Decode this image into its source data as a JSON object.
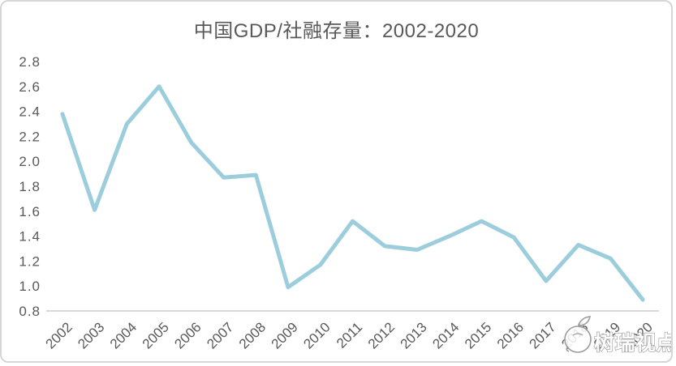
{
  "card": {
    "background": "#ffffff",
    "border_color": "#d6d6d6"
  },
  "chart_data": {
    "type": "line",
    "title": "中国GDP/社融存量：2002-2020",
    "categories": [
      "2002",
      "2003",
      "2004",
      "2005",
      "2006",
      "2007",
      "2008",
      "2009",
      "2010",
      "2011",
      "2012",
      "2013",
      "2014",
      "2015",
      "2016",
      "2017",
      "2018",
      "2019",
      "2020"
    ],
    "values": [
      2.38,
      1.61,
      2.3,
      2.6,
      2.15,
      1.87,
      1.89,
      0.99,
      1.17,
      1.52,
      1.32,
      1.29,
      1.4,
      1.52,
      1.39,
      1.04,
      1.33,
      1.22,
      0.89
    ],
    "xlabel": "",
    "ylabel": "",
    "ylim": [
      0.8,
      2.8
    ],
    "ytick_step": 0.2,
    "grid": false,
    "legend_position": "none",
    "line_color": "#9ccddc",
    "axis_line_color": "#d9d9d9",
    "tick_label_color": "#595959",
    "title_color": "#595959",
    "x_tick_rotation_deg": -45
  },
  "watermark": {
    "text": "树瑞视点",
    "logo_icon": "bird-sprout-logo",
    "outline_color": "#9b9b9b",
    "fill_color": "#ffffff"
  }
}
